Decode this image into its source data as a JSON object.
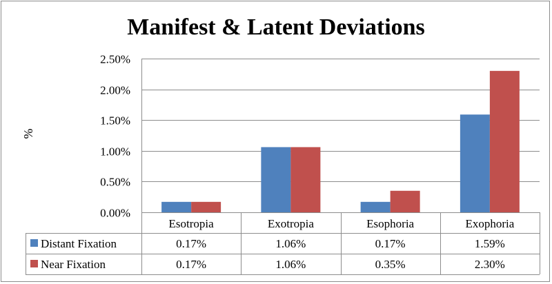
{
  "chart_data": {
    "type": "bar",
    "title": "Manifest & Latent Deviations",
    "ylabel": "%",
    "xlabel": "",
    "ylim": [
      0,
      2.5
    ],
    "yticks": [
      "0.00%",
      "0.50%",
      "1.00%",
      "1.50%",
      "2.00%",
      "2.50%"
    ],
    "ytick_values": [
      0,
      0.5,
      1.0,
      1.5,
      2.0,
      2.5
    ],
    "grid": "horizontal",
    "legend": "data-table",
    "categories": [
      "Esotropia",
      "Exotropia",
      "Esophoria",
      "Exophoria"
    ],
    "series": [
      {
        "name": "Distant Fixation",
        "color": "#4f81bd",
        "values": [
          0.17,
          1.06,
          0.17,
          1.59
        ],
        "labels": [
          "0.17%",
          "1.06%",
          "0.17%",
          "1.59%"
        ]
      },
      {
        "name": "Near Fixation",
        "color": "#c0504d",
        "values": [
          0.17,
          1.06,
          0.35,
          2.3
        ],
        "labels": [
          "0.17%",
          "1.06%",
          "0.35%",
          "2.30%"
        ]
      }
    ]
  }
}
